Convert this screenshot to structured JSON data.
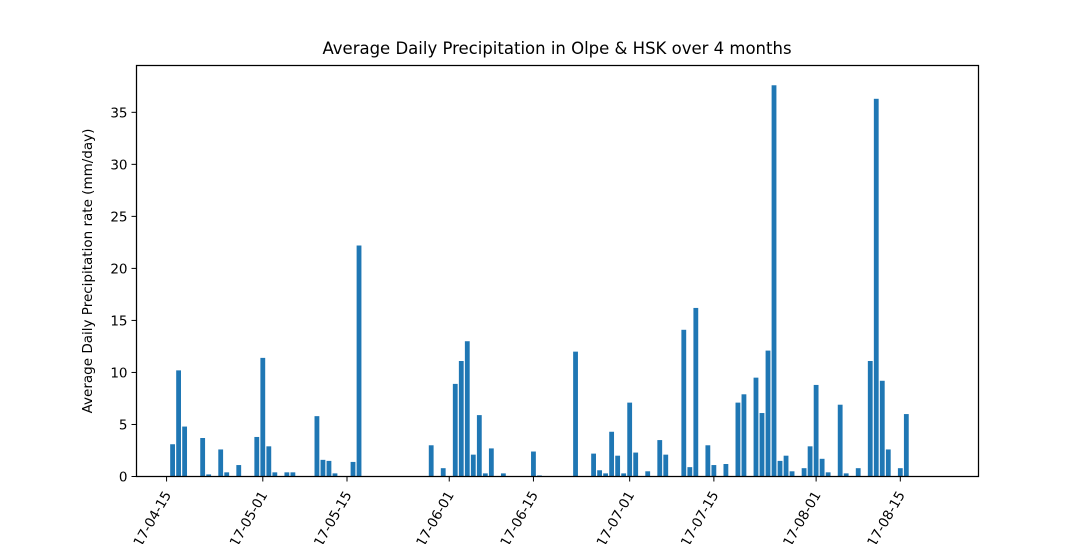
{
  "chart_data": {
    "type": "bar",
    "title": "Average Daily Precipitation in Olpe & HSK over 4 months",
    "xlabel": "",
    "ylabel": "Average Daily Precipitation rate (mm/day)",
    "ylim": [
      0,
      39.5
    ],
    "yticks": [
      0,
      5,
      10,
      15,
      20,
      25,
      30,
      35
    ],
    "xlim": [
      "2017-04-10",
      "2017-08-28"
    ],
    "xticks": [
      {
        "date": "2017-04-15",
        "label": "2017-04-15"
      },
      {
        "date": "2017-05-01",
        "label": "2017-05-01"
      },
      {
        "date": "2017-05-15",
        "label": "2017-05-15"
      },
      {
        "date": "2017-06-01",
        "label": "2017-06-01"
      },
      {
        "date": "2017-06-15",
        "label": "2017-06-15"
      },
      {
        "date": "2017-07-01",
        "label": "2017-07-01"
      },
      {
        "date": "2017-07-15",
        "label": "2017-07-15"
      },
      {
        "date": "2017-08-01",
        "label": "2017-08-01"
      },
      {
        "date": "2017-08-15",
        "label": "2017-08-15"
      }
    ],
    "grid": false,
    "color": "#1f77b4",
    "x": [
      "2017-04-16",
      "2017-04-17",
      "2017-04-18",
      "2017-04-19",
      "2017-04-20",
      "2017-04-21",
      "2017-04-22",
      "2017-04-23",
      "2017-04-24",
      "2017-04-25",
      "2017-04-26",
      "2017-04-27",
      "2017-04-28",
      "2017-04-29",
      "2017-04-30",
      "2017-05-01",
      "2017-05-02",
      "2017-05-03",
      "2017-05-04",
      "2017-05-05",
      "2017-05-06",
      "2017-05-07",
      "2017-05-08",
      "2017-05-09",
      "2017-05-10",
      "2017-05-11",
      "2017-05-12",
      "2017-05-13",
      "2017-05-14",
      "2017-05-15",
      "2017-05-16",
      "2017-05-17",
      "2017-05-18",
      "2017-05-19",
      "2017-05-20",
      "2017-05-21",
      "2017-05-22",
      "2017-05-23",
      "2017-05-24",
      "2017-05-25",
      "2017-05-26",
      "2017-05-27",
      "2017-05-28",
      "2017-05-29",
      "2017-05-30",
      "2017-05-31",
      "2017-06-01",
      "2017-06-02",
      "2017-06-03",
      "2017-06-04",
      "2017-06-05",
      "2017-06-06",
      "2017-06-07",
      "2017-06-08",
      "2017-06-09",
      "2017-06-10",
      "2017-06-11",
      "2017-06-12",
      "2017-06-13",
      "2017-06-14",
      "2017-06-15",
      "2017-06-16",
      "2017-06-17",
      "2017-06-18",
      "2017-06-19",
      "2017-06-20",
      "2017-06-21",
      "2017-06-22",
      "2017-06-23",
      "2017-06-24",
      "2017-06-25",
      "2017-06-26",
      "2017-06-27",
      "2017-06-28",
      "2017-06-29",
      "2017-06-30",
      "2017-07-01",
      "2017-07-02",
      "2017-07-03",
      "2017-07-04",
      "2017-07-05",
      "2017-07-06",
      "2017-07-07",
      "2017-07-08",
      "2017-07-09",
      "2017-07-10",
      "2017-07-11",
      "2017-07-12",
      "2017-07-13",
      "2017-07-14",
      "2017-07-15",
      "2017-07-16",
      "2017-07-17",
      "2017-07-18",
      "2017-07-19",
      "2017-07-20",
      "2017-07-21",
      "2017-07-22",
      "2017-07-23",
      "2017-07-24",
      "2017-07-25",
      "2017-07-26",
      "2017-07-27",
      "2017-07-28",
      "2017-07-29",
      "2017-07-30",
      "2017-07-31",
      "2017-08-01",
      "2017-08-02",
      "2017-08-03",
      "2017-08-04",
      "2017-08-05",
      "2017-08-06",
      "2017-08-07",
      "2017-08-08",
      "2017-08-09",
      "2017-08-10",
      "2017-08-11",
      "2017-08-12",
      "2017-08-13",
      "2017-08-14",
      "2017-08-15",
      "2017-08-16"
    ],
    "values": [
      3.1,
      10.2,
      4.8,
      0,
      0,
      3.7,
      0.2,
      0,
      2.6,
      0.4,
      0,
      1.1,
      0,
      0,
      3.8,
      11.4,
      2.9,
      0.4,
      0,
      0.4,
      0.4,
      0,
      0,
      0,
      5.8,
      1.6,
      1.5,
      0.3,
      0,
      0,
      1.4,
      22.2,
      0,
      0,
      0,
      0,
      0,
      0,
      0,
      0,
      0,
      0,
      0,
      3.0,
      0,
      0.8,
      0,
      8.9,
      11.1,
      13.0,
      2.1,
      5.9,
      0.3,
      2.7,
      0,
      0.3,
      0,
      0,
      0,
      0,
      2.4,
      0.1,
      0,
      0,
      0,
      0,
      0,
      12.0,
      0,
      0,
      2.2,
      0.6,
      0.3,
      4.3,
      2.0,
      0.3,
      7.1,
      2.3,
      0,
      0.5,
      0,
      3.5,
      2.1,
      0,
      0,
      14.1,
      0.9,
      16.2,
      0,
      3.0,
      1.1,
      0,
      1.2,
      0,
      7.1,
      7.9,
      0,
      9.5,
      6.1,
      12.1,
      37.6,
      1.5,
      2.0,
      0.5,
      0,
      0.8,
      2.9,
      8.8,
      1.7,
      0.4,
      0,
      6.9,
      0.3,
      0,
      0.8,
      0,
      11.1,
      36.3,
      9.2,
      2.6,
      0,
      0.8,
      6.0
    ]
  }
}
